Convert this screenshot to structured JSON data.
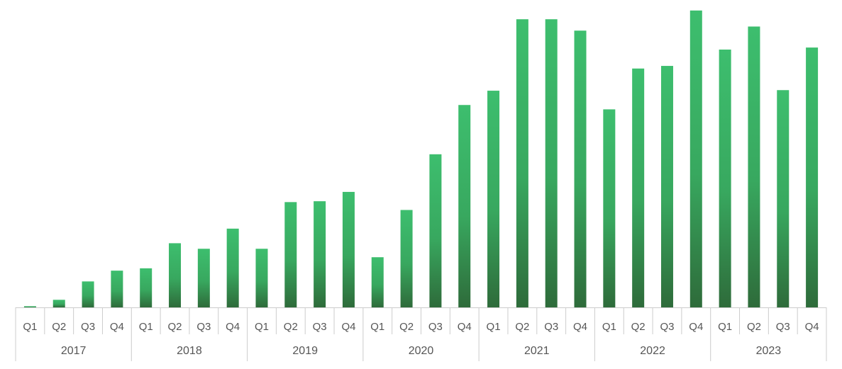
{
  "chart_data": {
    "type": "bar",
    "title": "",
    "xlabel": "",
    "ylabel": "",
    "ylim": [
      0,
      100
    ],
    "grid": false,
    "legend": "none",
    "bar_color_top": "#3dbe6e",
    "bar_color_bottom": "#2e6b3a",
    "axis_color": "#cccccc",
    "groups": [
      "2017",
      "2018",
      "2019",
      "2020",
      "2021",
      "2022",
      "2023"
    ],
    "quarters": [
      "Q1",
      "Q2",
      "Q3",
      "Q4"
    ],
    "categories": [
      "2017 Q1",
      "2017 Q2",
      "2017 Q3",
      "2017 Q4",
      "2018 Q1",
      "2018 Q2",
      "2018 Q3",
      "2018 Q4",
      "2019 Q1",
      "2019 Q2",
      "2019 Q3",
      "2019 Q4",
      "2020 Q1",
      "2020 Q2",
      "2020 Q3",
      "2020 Q4",
      "2021 Q1",
      "2021 Q2",
      "2021 Q3",
      "2021 Q4",
      "2022 Q1",
      "2022 Q2",
      "2022 Q3",
      "2022 Q4",
      "2023 Q1",
      "2023 Q2",
      "2023 Q3",
      "2023 Q4"
    ],
    "values": [
      0.4,
      2.6,
      8.9,
      12.6,
      13.4,
      22.0,
      20.1,
      27.0,
      20.1,
      36.1,
      36.4,
      39.6,
      17.2,
      33.4,
      52.5,
      69.4,
      74.3,
      98.8,
      98.8,
      94.9,
      67.9,
      81.9,
      82.8,
      101.8,
      88.4,
      96.3,
      74.5,
      89.1
    ]
  }
}
